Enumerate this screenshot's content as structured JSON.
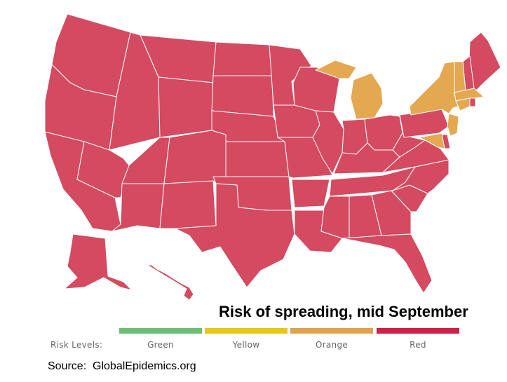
{
  "title": "Risk of spreading, mid September",
  "legend": {
    "label": "Risk Levels:",
    "levels": [
      {
        "name": "Green",
        "color": "#6bbf73"
      },
      {
        "name": "Yellow",
        "color": "#e6c817"
      },
      {
        "name": "Orange",
        "color": "#e0a24e"
      },
      {
        "name": "Red",
        "color": "#cf2146"
      }
    ]
  },
  "colors": {
    "red_state": "#d44a60",
    "orange_state": "#e3a850",
    "border": "#ffffff"
  },
  "state_risk": {
    "red": [
      "WA",
      "OR",
      "CA",
      "NV",
      "ID",
      "MT",
      "WY",
      "UT",
      "AZ",
      "CO",
      "NM",
      "ND",
      "SD",
      "NE",
      "KS",
      "OK",
      "TX",
      "MN",
      "IA",
      "MO",
      "AR",
      "LA",
      "WI",
      "IL",
      "IN",
      "OH",
      "KY",
      "TN",
      "MS",
      "AL",
      "GA",
      "FL",
      "SC",
      "NC",
      "VA",
      "WV",
      "PA",
      "DE",
      "ME",
      "NH",
      "RI",
      "AK",
      "HI"
    ],
    "orange": [
      "MI",
      "NY",
      "VT",
      "MA",
      "CT",
      "NJ",
      "MD"
    ]
  },
  "source": "Source:  GlobalEpidemics.org"
}
